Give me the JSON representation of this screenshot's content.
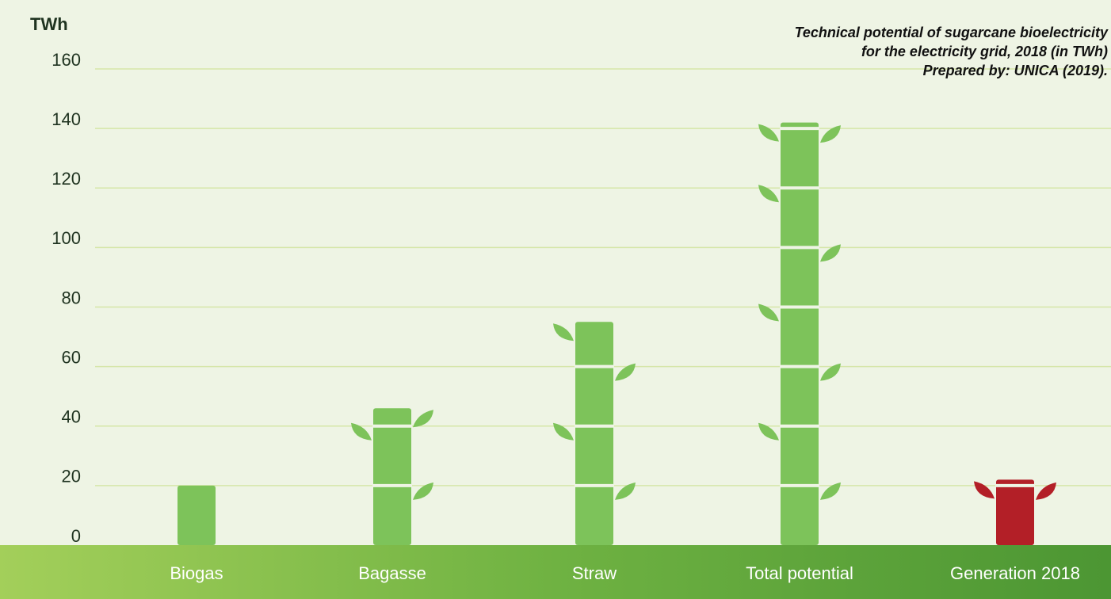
{
  "chart_data": {
    "type": "bar",
    "title": [
      "Technical potential of sugarcane bioelectricity",
      "for the electricity grid, 2018 (in TWh)"
    ],
    "source": "Prepared by: UNICA (2019).",
    "y_label": "TWh",
    "categories": [
      "Biogas",
      "Bagasse",
      "Straw",
      "Total potential",
      "Generation 2018"
    ],
    "values": [
      20,
      46,
      75,
      142,
      22
    ],
    "colors": [
      "#7dc35a",
      "#7dc35a",
      "#7dc35a",
      "#7dc35a",
      "#b31f27"
    ],
    "ylim": [
      0,
      160
    ],
    "yticks": [
      0,
      20,
      40,
      60,
      80,
      100,
      120,
      140,
      160
    ],
    "grid": true
  }
}
